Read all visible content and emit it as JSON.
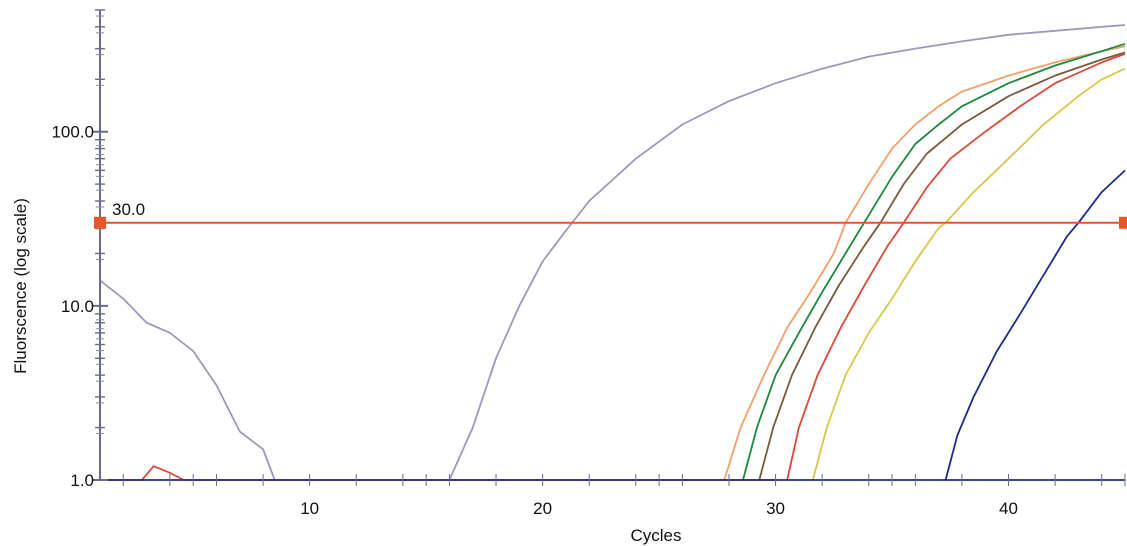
{
  "chart_data": {
    "type": "line",
    "xlabel": "Cycles",
    "ylabel": "Fluorscence (log scale)",
    "x_ticks": [
      10,
      20,
      30,
      40
    ],
    "y_ticks": [
      1.0,
      10.0,
      100.0
    ],
    "y_tick_labels": [
      "1.0",
      "10.0",
      "100.0"
    ],
    "xlim": [
      1,
      45
    ],
    "ylim": [
      1,
      500
    ],
    "y_scale": "log",
    "grid": false,
    "legend": "none",
    "threshold": {
      "value": 30.0,
      "label": "30.0",
      "color": "#e8552a"
    },
    "series": [
      {
        "color": "#9a9ab8",
        "points": [
          [
            1,
            14
          ],
          [
            2,
            11
          ],
          [
            3,
            8
          ],
          [
            4,
            7
          ],
          [
            5,
            5.5
          ],
          [
            6,
            3.5
          ],
          [
            7,
            1.9
          ],
          [
            8,
            1.5
          ],
          [
            8.5,
            1.0
          ]
        ]
      },
      {
        "color": "#9a9ab8",
        "points": [
          [
            16,
            1.0
          ],
          [
            17,
            2
          ],
          [
            18,
            5
          ],
          [
            19,
            10
          ],
          [
            20,
            18
          ],
          [
            21,
            27
          ],
          [
            22,
            40
          ],
          [
            24,
            70
          ],
          [
            26,
            110
          ],
          [
            28,
            150
          ],
          [
            30,
            190
          ],
          [
            32,
            230
          ],
          [
            34,
            270
          ],
          [
            36,
            300
          ],
          [
            38,
            330
          ],
          [
            40,
            360
          ],
          [
            42,
            380
          ],
          [
            44,
            400
          ],
          [
            45,
            410
          ]
        ]
      },
      {
        "color": "#f2a06a",
        "points": [
          [
            27.8,
            1.0
          ],
          [
            28.5,
            2
          ],
          [
            29.5,
            4
          ],
          [
            30.5,
            7.5
          ],
          [
            31.5,
            12
          ],
          [
            32.5,
            20
          ],
          [
            33,
            30
          ],
          [
            34,
            50
          ],
          [
            35,
            80
          ],
          [
            36,
            110
          ],
          [
            37,
            140
          ],
          [
            38,
            170
          ],
          [
            40,
            210
          ],
          [
            42,
            250
          ],
          [
            44,
            290
          ],
          [
            45,
            310
          ]
        ]
      },
      {
        "color": "#1a8a3a",
        "points": [
          [
            28.6,
            1.0
          ],
          [
            29.2,
            2
          ],
          [
            30,
            4
          ],
          [
            31,
            7
          ],
          [
            32,
            12
          ],
          [
            33,
            20
          ],
          [
            33.8,
            30
          ],
          [
            35,
            55
          ],
          [
            36,
            85
          ],
          [
            37,
            110
          ],
          [
            38,
            140
          ],
          [
            40,
            190
          ],
          [
            42,
            240
          ],
          [
            44,
            290
          ],
          [
            45,
            320
          ]
        ]
      },
      {
        "color": "#7a5a3a",
        "points": [
          [
            29.3,
            1.0
          ],
          [
            29.9,
            2
          ],
          [
            30.7,
            4
          ],
          [
            31.7,
            7.5
          ],
          [
            32.7,
            13
          ],
          [
            33.8,
            22
          ],
          [
            34.5,
            30
          ],
          [
            35.5,
            50
          ],
          [
            36.5,
            75
          ],
          [
            38,
            110
          ],
          [
            40,
            160
          ],
          [
            42,
            210
          ],
          [
            44,
            260
          ],
          [
            45,
            285
          ]
        ]
      },
      {
        "color": "#d94a3a",
        "points": [
          [
            30.5,
            1.0
          ],
          [
            31,
            2
          ],
          [
            31.8,
            4
          ],
          [
            32.8,
            7.5
          ],
          [
            33.8,
            13
          ],
          [
            34.8,
            22
          ],
          [
            35.5,
            30
          ],
          [
            36.5,
            48
          ],
          [
            37.5,
            70
          ],
          [
            39,
            100
          ],
          [
            40.5,
            140
          ],
          [
            42,
            190
          ],
          [
            44,
            250
          ],
          [
            45,
            280
          ]
        ]
      },
      {
        "color": "#d8c84a",
        "points": [
          [
            31.6,
            1.0
          ],
          [
            32.2,
            2
          ],
          [
            33,
            4
          ],
          [
            34,
            7
          ],
          [
            35,
            11
          ],
          [
            36,
            18
          ],
          [
            37,
            28
          ],
          [
            37.3,
            30
          ],
          [
            38.5,
            45
          ],
          [
            40,
            70
          ],
          [
            41.5,
            110
          ],
          [
            43,
            160
          ],
          [
            44,
            200
          ],
          [
            45,
            230
          ]
        ]
      },
      {
        "color": "#1f2a8a",
        "points": [
          [
            37.3,
            1.0
          ],
          [
            37.8,
            1.8
          ],
          [
            38.5,
            3
          ],
          [
            39.5,
            5.5
          ],
          [
            40.5,
            9
          ],
          [
            41.5,
            15
          ],
          [
            42.5,
            25
          ],
          [
            43,
            30
          ],
          [
            44,
            45
          ],
          [
            45,
            60
          ]
        ]
      },
      {
        "color": "#d94a3a",
        "points": [
          [
            1,
            1.0
          ],
          [
            2.8,
            1.0
          ],
          [
            3.3,
            1.2
          ],
          [
            4,
            1.1
          ],
          [
            4.6,
            1.0
          ],
          [
            16,
            1.0
          ],
          [
            30,
            1.0
          ]
        ]
      },
      {
        "color": "#1f2a8a",
        "points": [
          [
            1,
            1.0
          ],
          [
            8,
            1.0
          ],
          [
            12,
            1.0
          ],
          [
            20,
            1.0
          ],
          [
            30,
            1.0
          ],
          [
            36,
            1.0
          ],
          [
            40,
            1.0
          ],
          [
            45,
            1.0
          ]
        ]
      }
    ]
  }
}
